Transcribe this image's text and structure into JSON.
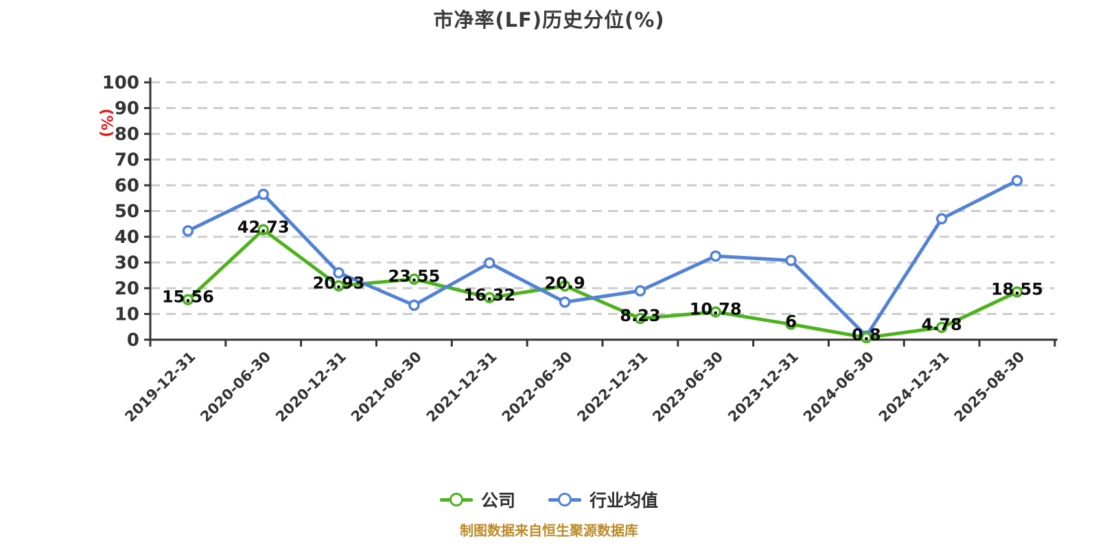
{
  "title": "市净率(LF)历史分位(%)",
  "footer": "制图数据来自恒生聚源数据库",
  "colors": {
    "company": "#4cb31c",
    "industry": "#5182d8",
    "axis": "#333333",
    "grid": "#cccccc",
    "tick_text": "#333333",
    "data_label_text": "#0a0a0a",
    "title_text": "#3a3a3a",
    "footer_text": "#bd8a26",
    "y_unit_text": "#e01f1f",
    "marker_fill": "#ffffff"
  },
  "chart_data": {
    "type": "line",
    "title": "市净率(LF)历史分位(%)",
    "xlabel": "",
    "ylabel": "(%)",
    "ylim": [
      0,
      100
    ],
    "ytick_step": 10,
    "grid": "horizontal-dashed",
    "legend_position": "bottom",
    "categories": [
      "2019-12-31",
      "2020-06-30",
      "2020-12-31",
      "2021-06-30",
      "2021-12-31",
      "2022-06-30",
      "2022-12-31",
      "2023-06-30",
      "2023-12-31",
      "2024-06-30",
      "2024-12-31",
      "2025-08-30"
    ],
    "series": [
      {
        "key": "company",
        "name": "公司",
        "color_key": "company",
        "labels_shown": true,
        "values": [
          15.56,
          42.73,
          20.93,
          23.55,
          16.32,
          20.9,
          8.23,
          10.78,
          6,
          0.8,
          4.78,
          18.55
        ]
      },
      {
        "key": "industry",
        "name": "行业均值",
        "color_key": "industry",
        "labels_shown": false,
        "values": [
          42.3,
          56.5,
          26.0,
          13.4,
          29.8,
          14.6,
          19.0,
          32.5,
          30.8,
          1.4,
          47.0,
          61.8
        ]
      }
    ]
  }
}
